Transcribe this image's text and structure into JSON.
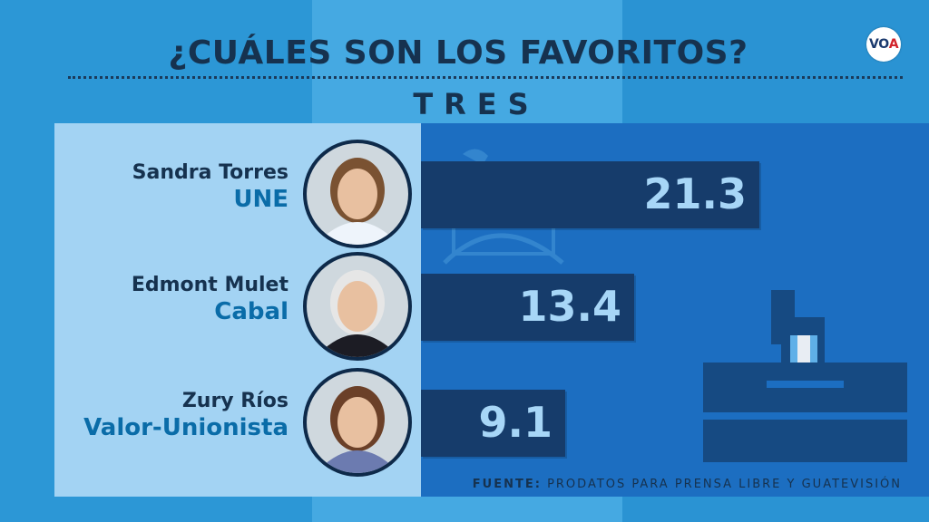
{
  "title": "¿CUÁLES SON LOS FAVORITOS?",
  "subtitle": "TRES",
  "logo": {
    "v": "V",
    "o": "O",
    "a": "A"
  },
  "source": {
    "label": "FUENTE:",
    "text": "PRODATOS PARA PRENSA LIBRE Y GUATEVISIÓN"
  },
  "colors": {
    "background": "#2f9ad8",
    "left_panel": "#a3d3f3",
    "right_panel": "#1c6ec1",
    "bar": "#163c6b",
    "bar_text": "#a7d6f7",
    "name_text": "#16324f",
    "party_text": "#0a6ca8"
  },
  "chart_data": {
    "type": "bar",
    "orientation": "horizontal",
    "title": "¿CUÁLES SON LOS FAVORITOS?",
    "subtitle": "TRES",
    "categories": [
      "Sandra Torres",
      "Edmont Mulet",
      "Zury Ríos"
    ],
    "parties": [
      "UNE",
      "Cabal",
      "Valor-Unionista"
    ],
    "values": [
      21.3,
      13.4,
      9.1
    ],
    "value_labels": [
      "21.3",
      "13.4",
      "9.1"
    ],
    "xlim": [
      0,
      32
    ],
    "grid": false,
    "legend": "none",
    "source": "FUENTE: PRODATOS PARA PRENSA LIBRE Y GUATEVISIÓN"
  }
}
